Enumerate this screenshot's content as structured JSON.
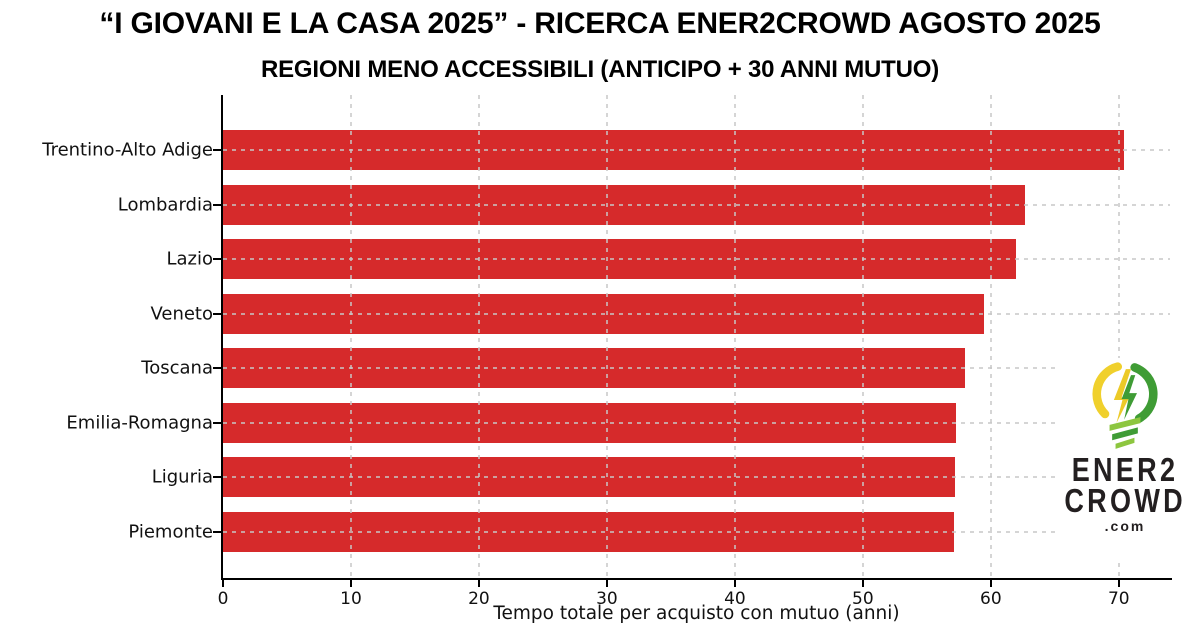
{
  "header": {
    "title": "“I GIOVANI E LA CASA 2025” - RICERCA ENER2CROWD AGOSTO 2025",
    "subtitle": "REGIONI MENO ACCESSIBILI (ANTICIPO + 30 ANNI MUTUO)"
  },
  "chart_data": {
    "type": "bar",
    "orientation": "horizontal",
    "title": "“I GIOVANI E LA CASA 2025” - RICERCA ENER2CROWD AGOSTO 2025",
    "subtitle": "REGIONI MENO ACCESSIBILI (ANTICIPO + 30 ANNI MUTUO)",
    "categories": [
      "Trentino-Alto Adige",
      "Lombardia",
      "Lazio",
      "Veneto",
      "Toscana",
      "Emilia-Romagna",
      "Liguria",
      "Piemonte"
    ],
    "values": [
      70.4,
      62.7,
      62.0,
      59.5,
      58.0,
      57.3,
      57.2,
      57.1
    ],
    "xlabel": "Tempo totale per acquisto con mutuo (anni)",
    "ylabel": "",
    "xlim": [
      0,
      74
    ],
    "xticks": [
      0,
      10,
      20,
      30,
      40,
      50,
      60,
      70
    ],
    "xtick_labels": [
      "0",
      "10",
      "20",
      "30",
      "40",
      "50",
      "60",
      "70"
    ],
    "grid": true,
    "grid_style": "dashed",
    "grid_position": "over-bars",
    "legend": "none",
    "bar_color": "#d62a2b"
  },
  "logo": {
    "line1": "ENER2",
    "line2": "CROWD",
    "line3": ".com",
    "colors": {
      "yellow": "#f0d02c",
      "green": "#3f9c35",
      "light_green": "#8dc63f",
      "text": "#231f20"
    }
  }
}
